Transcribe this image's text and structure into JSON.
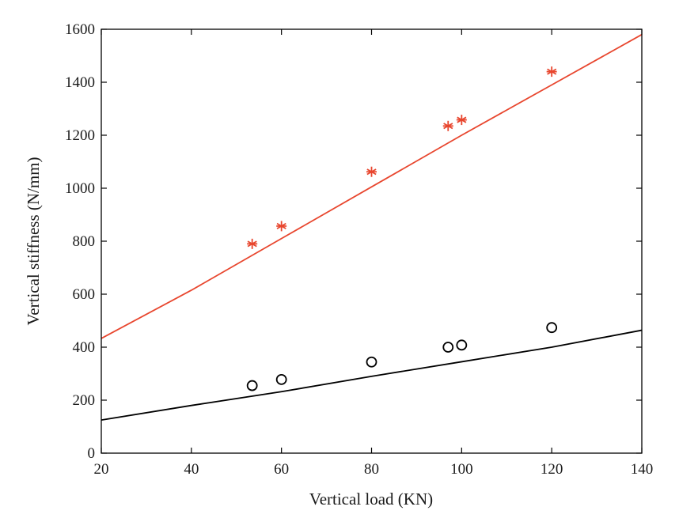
{
  "chart_data": {
    "type": "scatter",
    "xlabel": "Vertical load (KN)",
    "ylabel": "Vertical stiffness (N/mm)",
    "xlim": [
      20,
      140
    ],
    "ylim": [
      0,
      1600
    ],
    "xticks": [
      20,
      40,
      60,
      80,
      100,
      120,
      140
    ],
    "yticks": [
      0,
      200,
      400,
      600,
      800,
      1000,
      1200,
      1400,
      1600
    ],
    "grid": false,
    "series": [
      {
        "kind": "points",
        "marker": "asterisk",
        "color": "#e8462e",
        "x": [
          53.5,
          60,
          80,
          97,
          100,
          120
        ],
        "y": [
          790,
          857,
          1062,
          1235,
          1258,
          1440
        ]
      },
      {
        "kind": "line",
        "color": "#e8462e",
        "x": [
          20,
          40,
          60,
          80,
          100,
          120,
          140
        ],
        "y": [
          433,
          615,
          810,
          1005,
          1200,
          1390,
          1580
        ]
      },
      {
        "kind": "points",
        "marker": "circle",
        "color": "#000000",
        "x": [
          53.5,
          60,
          80,
          97,
          100,
          120
        ],
        "y": [
          255,
          278,
          344,
          400,
          408,
          474
        ]
      },
      {
        "kind": "line",
        "color": "#000000",
        "x": [
          20,
          40,
          60,
          80,
          100,
          120,
          140
        ],
        "y": [
          125,
          180,
          232,
          290,
          345,
          400,
          464
        ]
      }
    ]
  }
}
